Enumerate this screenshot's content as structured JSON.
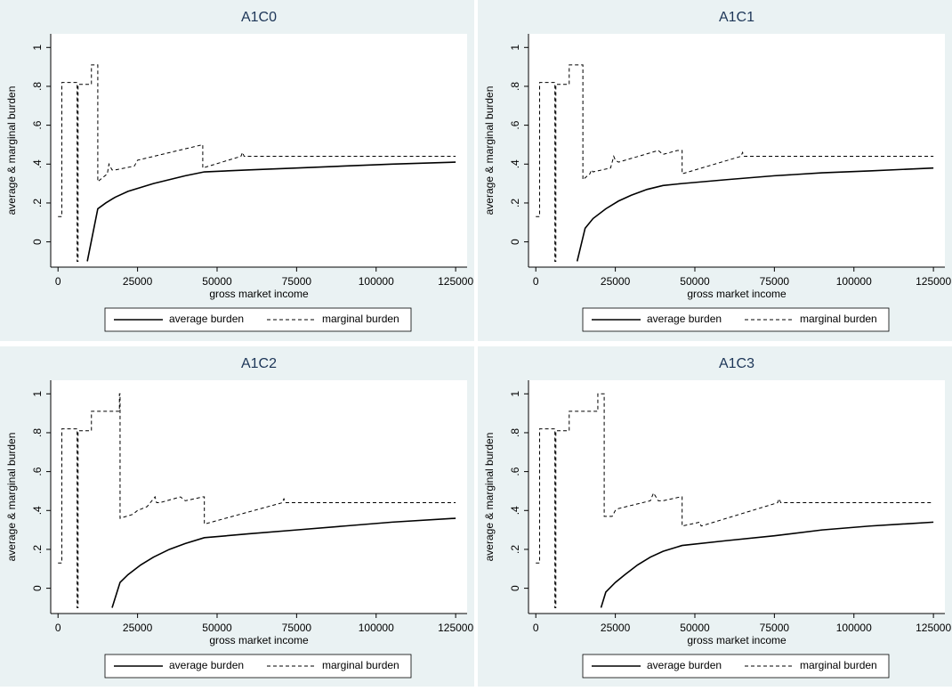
{
  "chart_data": [
    {
      "type": "line",
      "title": "A1C0",
      "xlabel": "gross market income",
      "ylabel": "average & marginal burden",
      "xlim": [
        -2300,
        128600
      ],
      "ylim": [
        -0.13,
        1.07
      ],
      "xticks": [
        0,
        25000,
        50000,
        75000,
        100000,
        125000
      ],
      "yticks": [
        0,
        {
          "value": 0.2,
          "label": ".2"
        },
        {
          "value": 0.4,
          "label": ".4"
        },
        {
          "value": 0.6,
          "label": ".6"
        },
        {
          "value": 0.8,
          "label": ".8"
        },
        1
      ],
      "series": [
        {
          "name": "average burden",
          "color": "#000000",
          "line_style": "solid",
          "x": [
            9200,
            12500,
            15000,
            18000,
            22000,
            26000,
            30000,
            35000,
            40000,
            46000,
            60000,
            75000,
            90000,
            105000,
            125000
          ],
          "values": [
            -0.1,
            0.17,
            0.2,
            0.23,
            0.26,
            0.28,
            0.3,
            0.32,
            0.34,
            0.36,
            0.37,
            0.38,
            0.39,
            0.4,
            0.41
          ]
        },
        {
          "name": "marginal burden",
          "color": "#000000",
          "line_style": "dashed",
          "x": [
            0,
            1200,
            1200,
            6000,
            6000,
            6300,
            6300,
            10500,
            10500,
            12500,
            12500,
            15500,
            16000,
            17000,
            18000,
            24000,
            25000,
            45500,
            45500,
            57500,
            58000,
            58500,
            125000
          ],
          "values": [
            0.13,
            0.13,
            0.82,
            0.82,
            -0.1,
            -0.1,
            0.81,
            0.81,
            0.91,
            0.91,
            0.31,
            0.35,
            0.4,
            0.37,
            0.37,
            0.39,
            0.42,
            0.5,
            0.38,
            0.44,
            0.46,
            0.44,
            0.44
          ]
        }
      ]
    },
    {
      "type": "line",
      "title": "A1C1",
      "xlabel": "gross market income",
      "ylabel": "average & marginal burden",
      "xlim": [
        -2300,
        128600
      ],
      "ylim": [
        -0.13,
        1.07
      ],
      "xticks": [
        0,
        25000,
        50000,
        75000,
        100000,
        125000
      ],
      "yticks": [
        0,
        {
          "value": 0.2,
          "label": ".2"
        },
        {
          "value": 0.4,
          "label": ".4"
        },
        {
          "value": 0.6,
          "label": ".6"
        },
        {
          "value": 0.8,
          "label": ".8"
        },
        1
      ],
      "series": [
        {
          "name": "average burden",
          "color": "#000000",
          "line_style": "solid",
          "x": [
            13000,
            15500,
            18000,
            22000,
            26000,
            30000,
            35000,
            40000,
            46000,
            60000,
            75000,
            90000,
            105000,
            125000
          ],
          "values": [
            -0.1,
            0.07,
            0.12,
            0.17,
            0.21,
            0.24,
            0.27,
            0.29,
            0.3,
            0.32,
            0.34,
            0.355,
            0.365,
            0.38
          ]
        },
        {
          "name": "marginal burden",
          "color": "#000000",
          "line_style": "dashed",
          "x": [
            0,
            1200,
            1200,
            6000,
            6000,
            6300,
            6300,
            10500,
            10500,
            14800,
            14800,
            17000,
            17500,
            18000,
            23500,
            24500,
            25000,
            26000,
            38500,
            40000,
            44500,
            46000,
            46000,
            64500,
            65000,
            65500,
            125000
          ],
          "values": [
            0.13,
            0.13,
            0.82,
            0.82,
            -0.1,
            -0.1,
            0.81,
            0.81,
            0.91,
            0.91,
            0.32,
            0.35,
            0.37,
            0.36,
            0.38,
            0.44,
            0.42,
            0.41,
            0.47,
            0.45,
            0.47,
            0.47,
            0.35,
            0.44,
            0.46,
            0.44,
            0.44
          ]
        }
      ]
    },
    {
      "type": "line",
      "title": "A1C2",
      "xlabel": "gross market income",
      "ylabel": "average & marginal burden",
      "xlim": [
        -2300,
        128600
      ],
      "ylim": [
        -0.13,
        1.07
      ],
      "xticks": [
        0,
        25000,
        50000,
        75000,
        100000,
        125000
      ],
      "yticks": [
        0,
        {
          "value": 0.2,
          "label": ".2"
        },
        {
          "value": 0.4,
          "label": ".4"
        },
        {
          "value": 0.6,
          "label": ".6"
        },
        {
          "value": 0.8,
          "label": ".8"
        },
        1
      ],
      "series": [
        {
          "name": "average burden",
          "color": "#000000",
          "line_style": "solid",
          "x": [
            17000,
            19500,
            22000,
            26000,
            30000,
            35000,
            40000,
            46000,
            60000,
            75000,
            90000,
            105000,
            125000
          ],
          "values": [
            -0.1,
            0.03,
            0.07,
            0.12,
            0.16,
            0.2,
            0.23,
            0.26,
            0.28,
            0.3,
            0.32,
            0.34,
            0.36
          ]
        },
        {
          "name": "marginal burden",
          "color": "#000000",
          "line_style": "dashed",
          "x": [
            0,
            1200,
            1200,
            6000,
            6000,
            6300,
            6300,
            10500,
            10500,
            19300,
            19300,
            19500,
            19500,
            23500,
            25000,
            28000,
            30500,
            31000,
            32000,
            38500,
            40000,
            45500,
            46000,
            46000,
            70500,
            71000,
            71500,
            125000
          ],
          "values": [
            0.13,
            0.13,
            0.82,
            0.82,
            -0.1,
            -0.1,
            0.81,
            0.81,
            0.91,
            0.91,
            1,
            1,
            0.36,
            0.38,
            0.4,
            0.42,
            0.47,
            0.44,
            0.44,
            0.47,
            0.45,
            0.47,
            0.47,
            0.33,
            0.44,
            0.46,
            0.44,
            0.44
          ]
        }
      ]
    },
    {
      "type": "line",
      "title": "A1C3",
      "xlabel": "gross market income",
      "ylabel": "average & marginal burden",
      "xlim": [
        -2300,
        128600
      ],
      "ylim": [
        -0.13,
        1.07
      ],
      "xticks": [
        0,
        25000,
        50000,
        75000,
        100000,
        125000
      ],
      "yticks": [
        0,
        {
          "value": 0.2,
          "label": ".2"
        },
        {
          "value": 0.4,
          "label": ".4"
        },
        {
          "value": 0.6,
          "label": ".6"
        },
        {
          "value": 0.8,
          "label": ".8"
        },
        1
      ],
      "series": [
        {
          "name": "average burden",
          "color": "#000000",
          "line_style": "solid",
          "x": [
            20500,
            22000,
            25000,
            28000,
            32000,
            36000,
            40000,
            46000,
            60000,
            75000,
            90000,
            105000,
            125000
          ],
          "values": [
            -0.1,
            -0.02,
            0.03,
            0.07,
            0.12,
            0.16,
            0.19,
            0.22,
            0.245,
            0.27,
            0.3,
            0.32,
            0.34
          ]
        },
        {
          "name": "marginal burden",
          "color": "#000000",
          "line_style": "dashed",
          "x": [
            0,
            1200,
            1200,
            6000,
            6000,
            6300,
            6300,
            10500,
            10500,
            19500,
            19500,
            21500,
            21500,
            24000,
            25000,
            26000,
            36000,
            37000,
            38500,
            40000,
            45500,
            46000,
            46000,
            51500,
            52000,
            76000,
            76500,
            77000,
            125000
          ],
          "values": [
            0.13,
            0.13,
            0.82,
            0.82,
            -0.1,
            -0.1,
            0.81,
            0.81,
            0.91,
            0.91,
            1,
            1,
            0.37,
            0.37,
            0.4,
            0.41,
            0.45,
            0.49,
            0.45,
            0.45,
            0.47,
            0.47,
            0.32,
            0.34,
            0.32,
            0.44,
            0.46,
            0.44,
            0.44
          ]
        }
      ]
    }
  ]
}
